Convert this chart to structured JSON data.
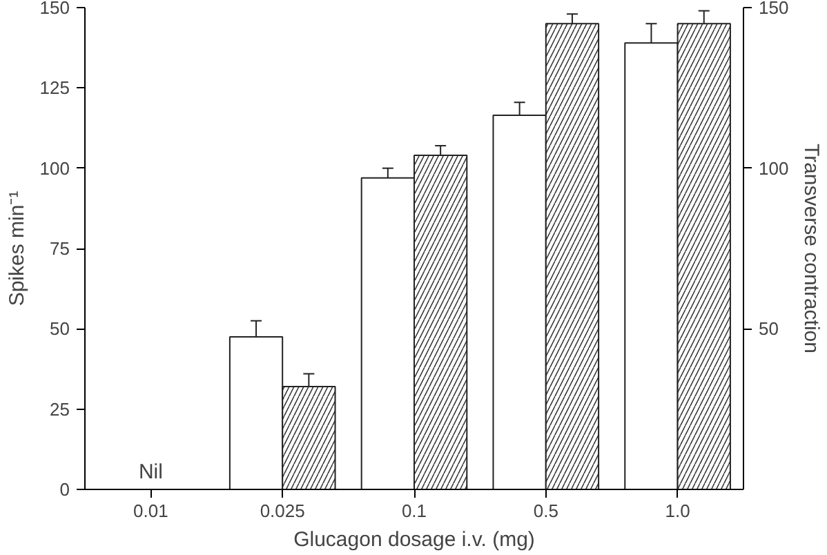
{
  "chart_data": {
    "type": "bar",
    "categories": [
      "0.01",
      "0.025",
      "0.1",
      "0.5",
      "1.0"
    ],
    "xlabel": "Glucagon dosage i.v. (mg)",
    "ylabel": "Spikes min⁻¹",
    "y2label": "Transverse contraction",
    "series": [
      {
        "color": "#ffffff",
        "values": [
          null,
          47.5,
          97,
          116.5,
          139
        ],
        "errors": [
          null,
          5,
          3,
          4,
          6
        ]
      },
      {
        "color": "#ffffff",
        "values": [
          null,
          32,
          104,
          145,
          145
        ],
        "errors": [
          null,
          4,
          3,
          3,
          4
        ]
      }
    ],
    "ylim": [
      0,
      150
    ],
    "yticks": [
      0,
      25,
      50,
      75,
      100,
      125,
      150
    ],
    "y2lim": [
      0,
      150
    ],
    "y2ticks": [
      50,
      100,
      150
    ],
    "annotations": [
      "Nil"
    ],
    "grid": false
  }
}
